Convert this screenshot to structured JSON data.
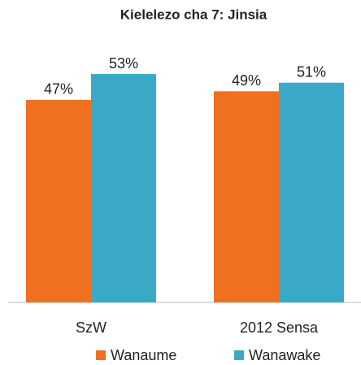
{
  "chart_data": {
    "type": "bar",
    "title": "Kielelezo cha 7: Jinsia",
    "categories": [
      "SzW",
      "2012 Sensa"
    ],
    "series": [
      {
        "name": "Wanaume",
        "color": "#f07022",
        "values": [
          47,
          49
        ],
        "value_labels": [
          "47%",
          "49%"
        ]
      },
      {
        "name": "Wanawake",
        "color": "#3aa9c7",
        "values": [
          53,
          51
        ],
        "value_labels": [
          "53%",
          "51%"
        ]
      }
    ],
    "ylim": [
      0,
      60
    ],
    "legend": "bottom"
  }
}
